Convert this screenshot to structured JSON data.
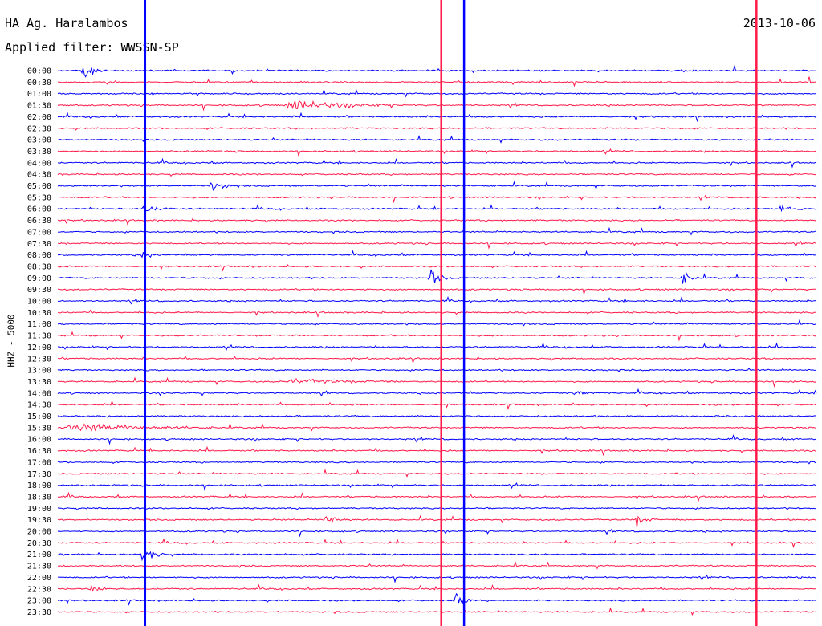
{
  "header": {
    "station": "HA Ag. Haralambos",
    "date": "2013-10-06",
    "filter": "Applied filter: WWSSN-SP"
  },
  "chart_data": {
    "type": "line",
    "title": "HA Ag. Haralambos",
    "ylabel": "HHZ - 5000",
    "colors": [
      "#0000ff",
      "#ff1a4a"
    ],
    "rows": [
      "00:00",
      "00:30",
      "01:00",
      "01:30",
      "02:00",
      "02:30",
      "03:00",
      "03:30",
      "04:00",
      "04:30",
      "05:00",
      "05:30",
      "06:00",
      "06:30",
      "07:00",
      "07:30",
      "08:00",
      "08:30",
      "09:00",
      "09:30",
      "10:00",
      "10:30",
      "11:00",
      "11:30",
      "12:00",
      "12:30",
      "13:00",
      "13:30",
      "14:00",
      "14:30",
      "15:00",
      "15:30",
      "16:00",
      "16:30",
      "17:00",
      "17:30",
      "18:00",
      "18:30",
      "19:00",
      "19:30",
      "20:00",
      "20:30",
      "21:00",
      "21:30",
      "22:00",
      "22:30",
      "23:00",
      "23:30"
    ],
    "events": [
      {
        "row": "00:00",
        "pos": 0.03,
        "amp": 3.0,
        "len": 0.03
      },
      {
        "row": "01:30",
        "pos": 0.3,
        "amp": 1.2,
        "len": 0.16
      },
      {
        "row": "05:00",
        "pos": 0.2,
        "amp": 1.3,
        "len": 0.04
      },
      {
        "row": "06:00",
        "pos": 0.11,
        "amp": 1.1,
        "len": 0.04
      },
      {
        "row": "06:00",
        "pos": 0.95,
        "amp": 1.2,
        "len": 0.05
      },
      {
        "row": "08:00",
        "pos": 0.11,
        "amp": 0.8,
        "len": 0.03
      },
      {
        "row": "09:00",
        "pos": 0.49,
        "amp": 2.0,
        "len": 0.03
      },
      {
        "row": "09:00",
        "pos": 0.82,
        "amp": 1.8,
        "len": 0.03
      },
      {
        "row": "13:30",
        "pos": 0.3,
        "amp": 0.6,
        "len": 0.16
      },
      {
        "row": "14:00",
        "pos": 0.68,
        "amp": 1.4,
        "len": 0.03
      },
      {
        "row": "15:30",
        "pos": 0.01,
        "amp": 1.0,
        "len": 0.22
      },
      {
        "row": "19:30",
        "pos": 0.35,
        "amp": 1.4,
        "len": 0.04
      },
      {
        "row": "19:30",
        "pos": 0.76,
        "amp": 1.5,
        "len": 0.03
      },
      {
        "row": "21:00",
        "pos": 0.11,
        "amp": 3.0,
        "len": 0.03
      },
      {
        "row": "22:30",
        "pos": 0.04,
        "amp": 1.2,
        "len": 0.03
      },
      {
        "row": "23:00",
        "pos": 0.52,
        "amp": 2.5,
        "len": 0.03
      }
    ],
    "spikes": [
      {
        "pos": 0.115,
        "amp": 16
      },
      {
        "pos": 0.505,
        "amp": 16
      },
      {
        "pos": 0.535,
        "amp": 16
      },
      {
        "pos": 0.92,
        "amp": 16
      }
    ]
  }
}
